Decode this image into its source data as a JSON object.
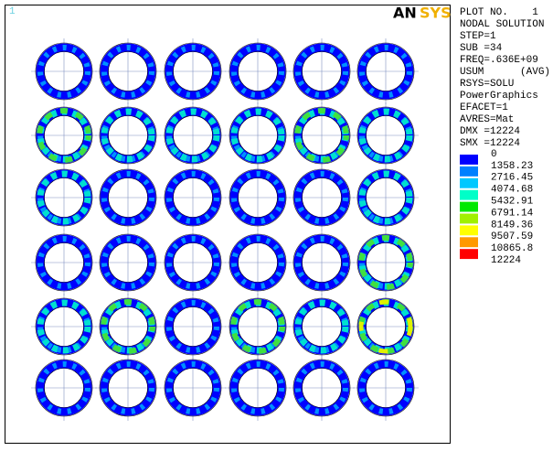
{
  "window_number": "1",
  "logo": {
    "left": "AN",
    "right": "SYS"
  },
  "info": [
    "PLOT NO.    1",
    "NODAL SOLUTION",
    "STEP=1",
    "SUB =34",
    "FREQ=.636E+09",
    "USUM      (AVG)",
    "RSYS=SOLU",
    "PowerGraphics",
    "EFACET=1",
    "AVRES=Mat",
    "DMX =12224",
    "SMX =12224"
  ],
  "legend": {
    "labels": [
      "0",
      "1358.23",
      "2716.45",
      "4074.68",
      "5432.91",
      "6791.14",
      "8149.36",
      "9507.59",
      "10865.8",
      "12224"
    ],
    "colors": [
      "#0000ff",
      "#0080ff",
      "#00c8ff",
      "#00ffc8",
      "#00e800",
      "#a0f000",
      "#ffff00",
      "#ff9900",
      "#ff0000"
    ]
  }
}
